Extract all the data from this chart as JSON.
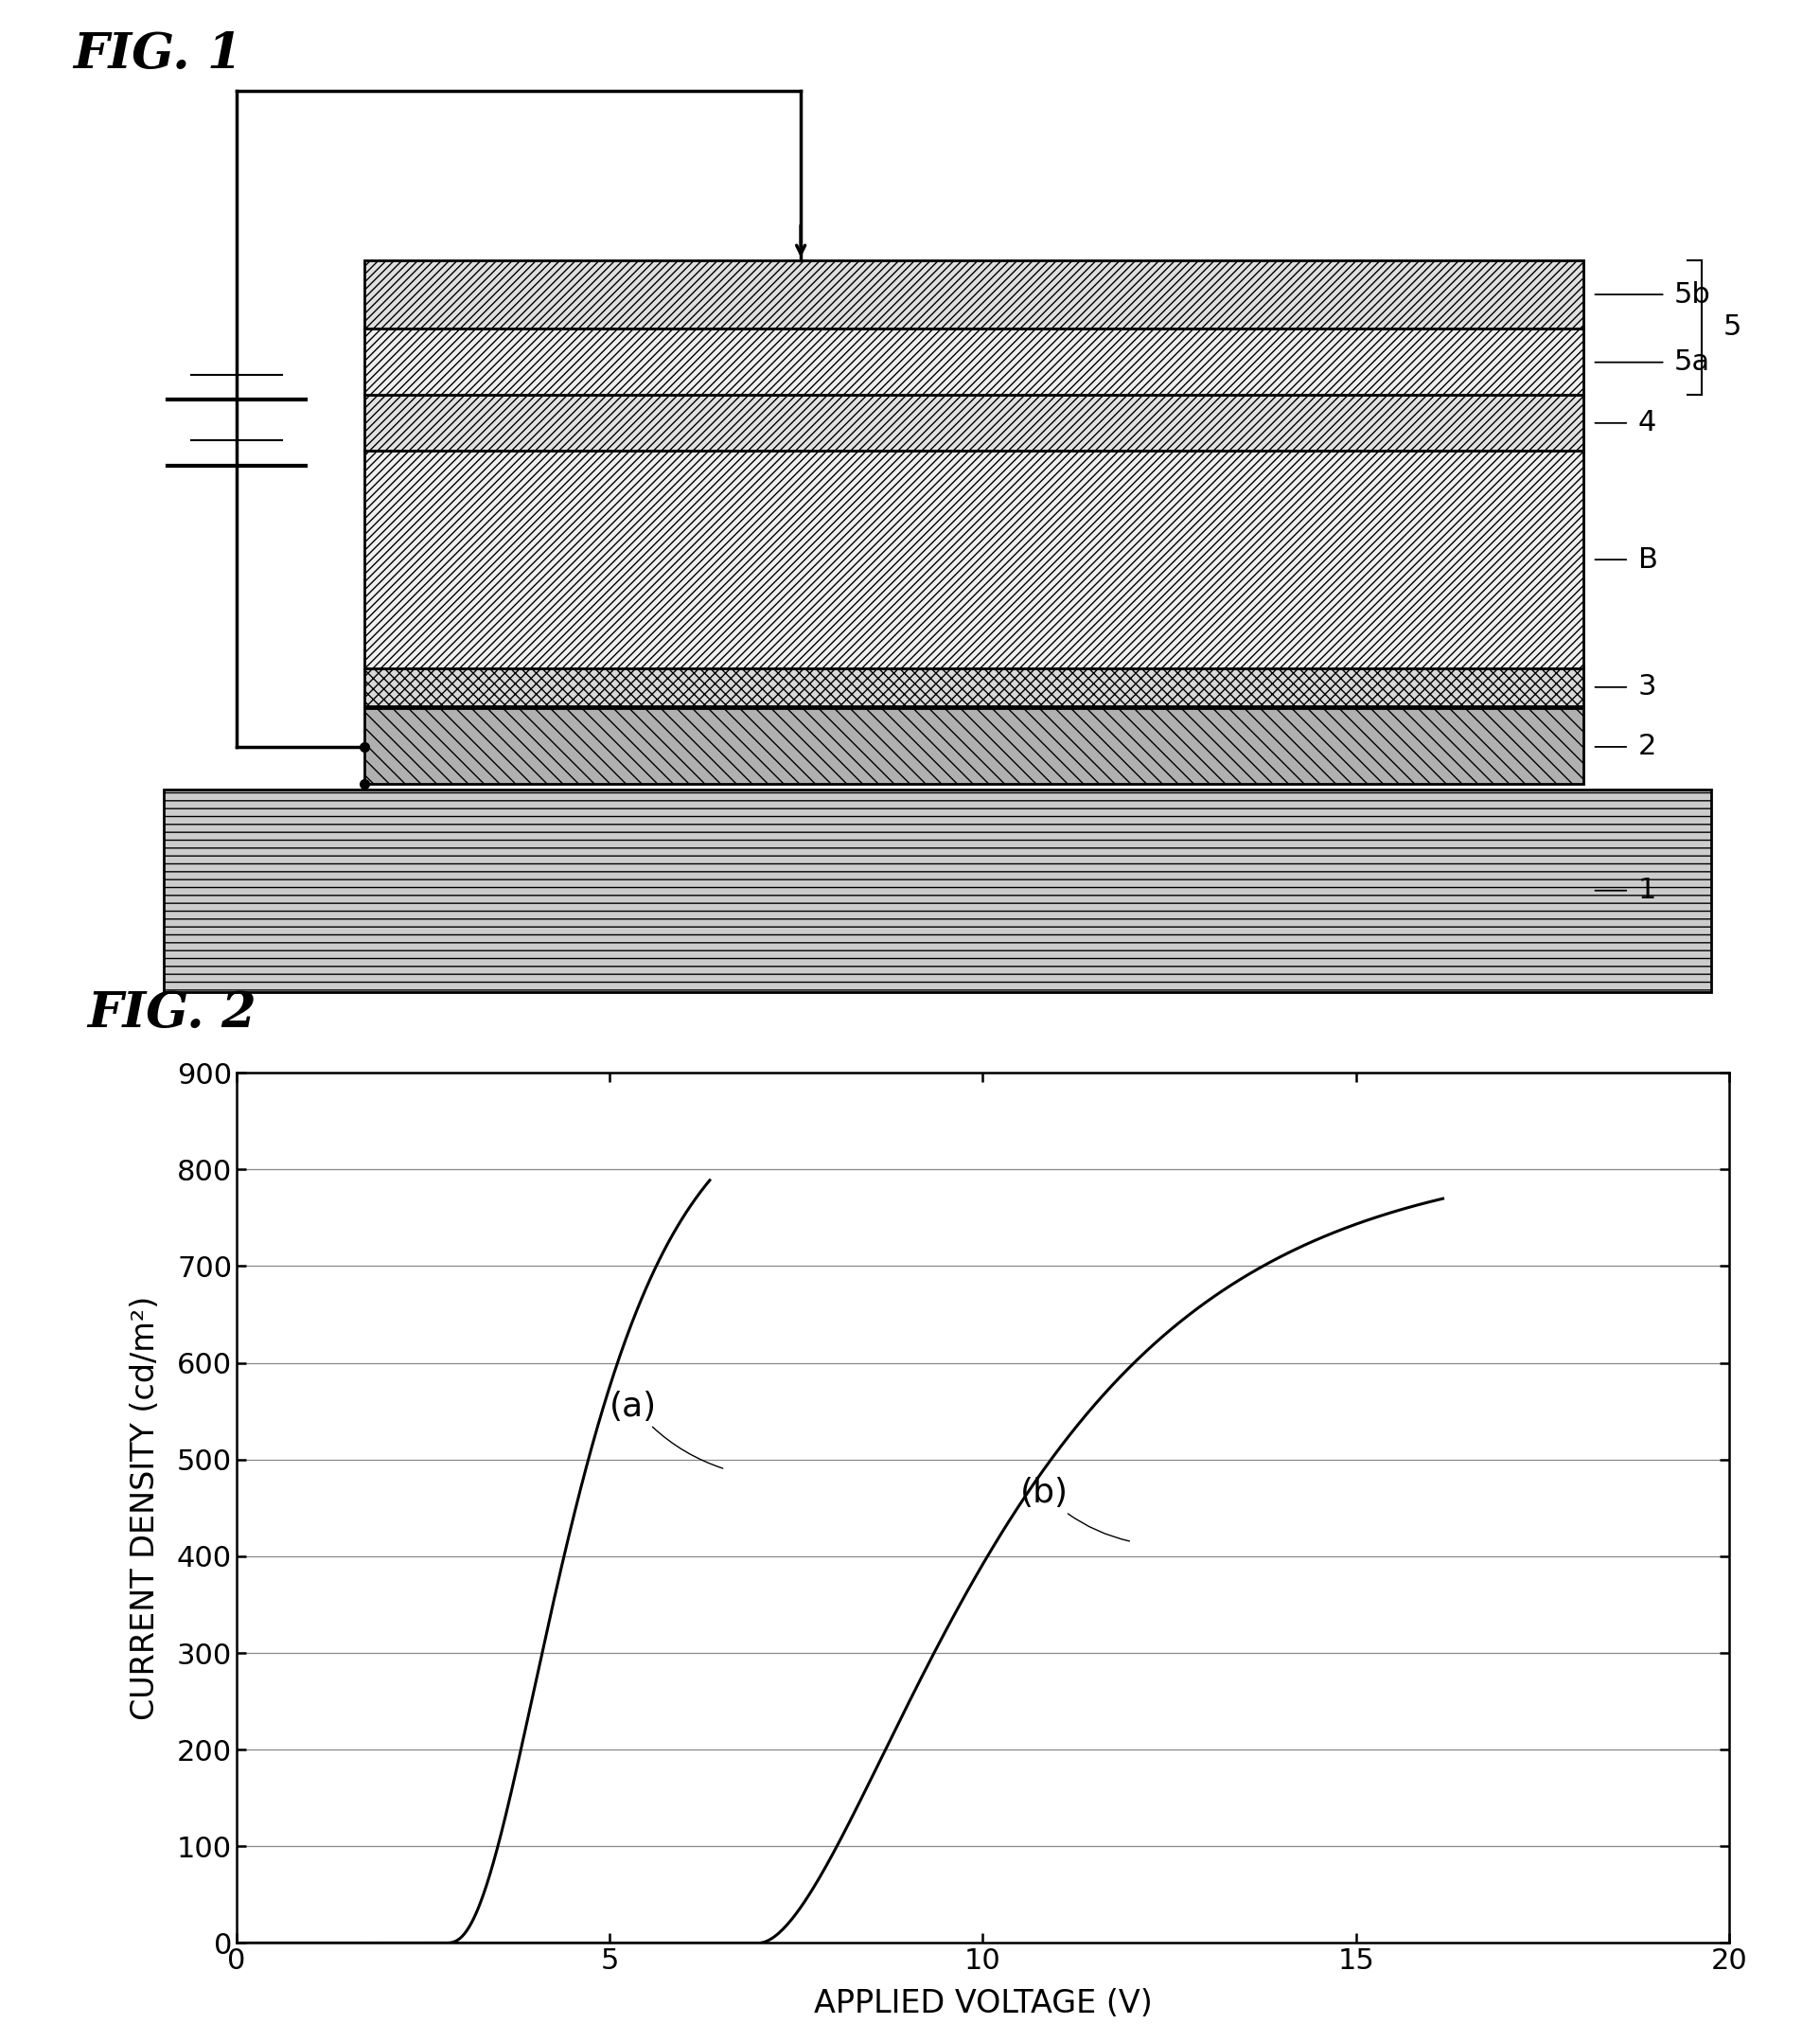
{
  "fig1_title": "FIG. 1",
  "fig2_title": "FIG. 2",
  "fig2_xlabel": "APPLIED VOLTAGE (V)",
  "fig2_ylabel": "CURRENT DENSITY (cd/m²)",
  "fig2_xlim": [
    0,
    20
  ],
  "fig2_ylim": [
    0,
    900
  ],
  "fig2_xticks": [
    0,
    5,
    10,
    15,
    20
  ],
  "fig2_yticks": [
    0,
    100,
    200,
    300,
    400,
    500,
    600,
    700,
    800,
    900
  ],
  "curve_a_label": "(a)",
  "curve_b_label": "(b)",
  "bg_color": "#ffffff",
  "line_color": "#000000"
}
